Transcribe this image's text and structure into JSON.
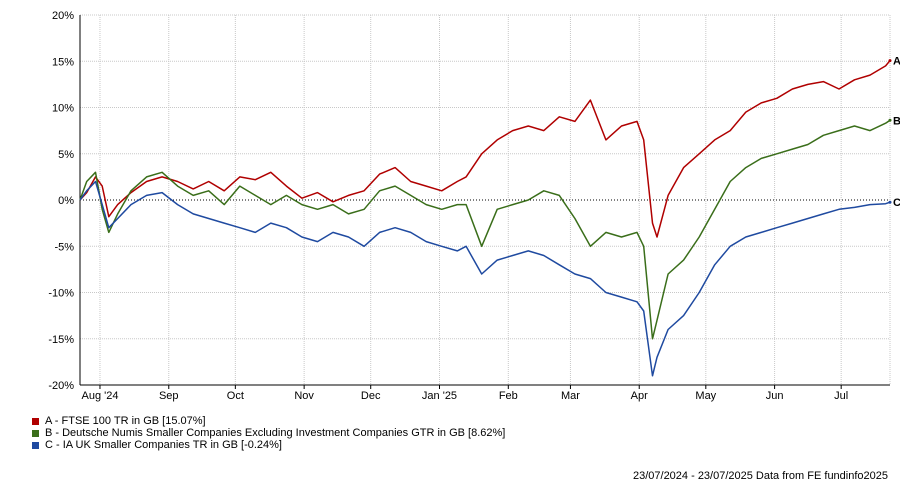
{
  "chart_data": {
    "type": "line",
    "title": "",
    "xlabel": "",
    "ylabel": "",
    "ylim": [
      -20,
      20
    ],
    "y_ticks": [
      "20%",
      "15%",
      "10%",
      "5%",
      "0%",
      "-5%",
      "-10%",
      "-15%",
      "-20%"
    ],
    "x_ticks": [
      "Aug '24",
      "Sep",
      "Oct",
      "Nov",
      "Dec",
      "Jan '25",
      "Feb",
      "Mar",
      "Apr",
      "May",
      "Jun",
      "Jul"
    ],
    "x_range": [
      "2024-07-23",
      "2025-07-23"
    ],
    "grid": true,
    "zero_line": "dotted",
    "legend_position": "bottom-left",
    "x": [
      "2024-07-23",
      "2024-07-26",
      "2024-07-30",
      "2024-08-02",
      "2024-08-05",
      "2024-08-09",
      "2024-08-15",
      "2024-08-22",
      "2024-08-29",
      "2024-09-05",
      "2024-09-12",
      "2024-09-19",
      "2024-09-26",
      "2024-10-03",
      "2024-10-10",
      "2024-10-17",
      "2024-10-24",
      "2024-10-31",
      "2024-11-07",
      "2024-11-14",
      "2024-11-21",
      "2024-11-28",
      "2024-12-05",
      "2024-12-12",
      "2024-12-19",
      "2024-12-26",
      "2025-01-02",
      "2025-01-09",
      "2025-01-13",
      "2025-01-20",
      "2025-01-27",
      "2025-02-03",
      "2025-02-10",
      "2025-02-17",
      "2025-02-24",
      "2025-03-03",
      "2025-03-10",
      "2025-03-17",
      "2025-03-24",
      "2025-03-31",
      "2025-04-03",
      "2025-04-07",
      "2025-04-09",
      "2025-04-14",
      "2025-04-21",
      "2025-04-28",
      "2025-05-05",
      "2025-05-12",
      "2025-05-19",
      "2025-05-26",
      "2025-06-02",
      "2025-06-09",
      "2025-06-16",
      "2025-06-23",
      "2025-06-30",
      "2025-07-07",
      "2025-07-14",
      "2025-07-21",
      "2025-07-23"
    ],
    "series": [
      {
        "name": "A - FTSE 100 TR in GB [15.07%]",
        "end_label": "A",
        "color": "#b00000",
        "values": [
          0,
          0.8,
          2.5,
          1.5,
          -1.8,
          -0.5,
          0.8,
          2.0,
          2.5,
          2.0,
          1.2,
          2.0,
          1.0,
          2.5,
          2.2,
          3.0,
          1.5,
          0.2,
          0.8,
          -0.2,
          0.5,
          1.0,
          2.8,
          3.5,
          2.0,
          1.5,
          1.0,
          2.0,
          2.5,
          5.0,
          6.5,
          7.5,
          8.0,
          7.5,
          9.0,
          8.5,
          10.8,
          6.5,
          8.0,
          8.5,
          6.5,
          -2.5,
          -4.0,
          0.5,
          3.5,
          5.0,
          6.5,
          7.5,
          9.5,
          10.5,
          11.0,
          12.0,
          12.5,
          12.8,
          12.0,
          13.0,
          13.5,
          14.5,
          15.07
        ]
      },
      {
        "name": "B - Deutsche Numis Smaller Companies Excluding Investment Companies GTR in GB [8.62%]",
        "end_label": "B",
        "color": "#3a6e1a",
        "values": [
          0,
          2.0,
          3.0,
          -1.0,
          -3.5,
          -1.5,
          1.0,
          2.5,
          3.0,
          1.5,
          0.5,
          1.0,
          -0.5,
          1.5,
          0.5,
          -0.5,
          0.5,
          -0.5,
          -1.0,
          -0.5,
          -1.5,
          -1.0,
          1.0,
          1.5,
          0.5,
          -0.5,
          -1.0,
          -0.5,
          -0.5,
          -5.0,
          -1.0,
          -0.5,
          0,
          1.0,
          0.5,
          -2.0,
          -5.0,
          -3.5,
          -4.0,
          -3.5,
          -5.0,
          -15.0,
          -13.0,
          -8.0,
          -6.5,
          -4.0,
          -1.0,
          2.0,
          3.5,
          4.5,
          5.0,
          5.5,
          6.0,
          7.0,
          7.5,
          8.0,
          7.5,
          8.3,
          8.62
        ]
      },
      {
        "name": "C - IA UK Smaller Companies TR in GB [-0.24%]",
        "end_label": "C",
        "color": "#1f4aa0",
        "values": [
          0,
          1.0,
          2.0,
          -0.5,
          -3.0,
          -2.0,
          -0.5,
          0.5,
          0.8,
          -0.5,
          -1.5,
          -2.0,
          -2.5,
          -3.0,
          -3.5,
          -2.5,
          -3.0,
          -4.0,
          -4.5,
          -3.5,
          -4.0,
          -5.0,
          -3.5,
          -3.0,
          -3.5,
          -4.5,
          -5.0,
          -5.5,
          -5.0,
          -8.0,
          -6.5,
          -6.0,
          -5.5,
          -6.0,
          -7.0,
          -8.0,
          -8.5,
          -10.0,
          -10.5,
          -11.0,
          -12.0,
          -19.0,
          -17.0,
          -14.0,
          -12.5,
          -10.0,
          -7.0,
          -5.0,
          -4.0,
          -3.5,
          -3.0,
          -2.5,
          -2.0,
          -1.5,
          -1.0,
          -0.8,
          -0.5,
          -0.4,
          -0.24
        ]
      }
    ]
  },
  "footer": {
    "text": "23/07/2024 - 23/07/2025 Data from FE fundinfo2025"
  }
}
